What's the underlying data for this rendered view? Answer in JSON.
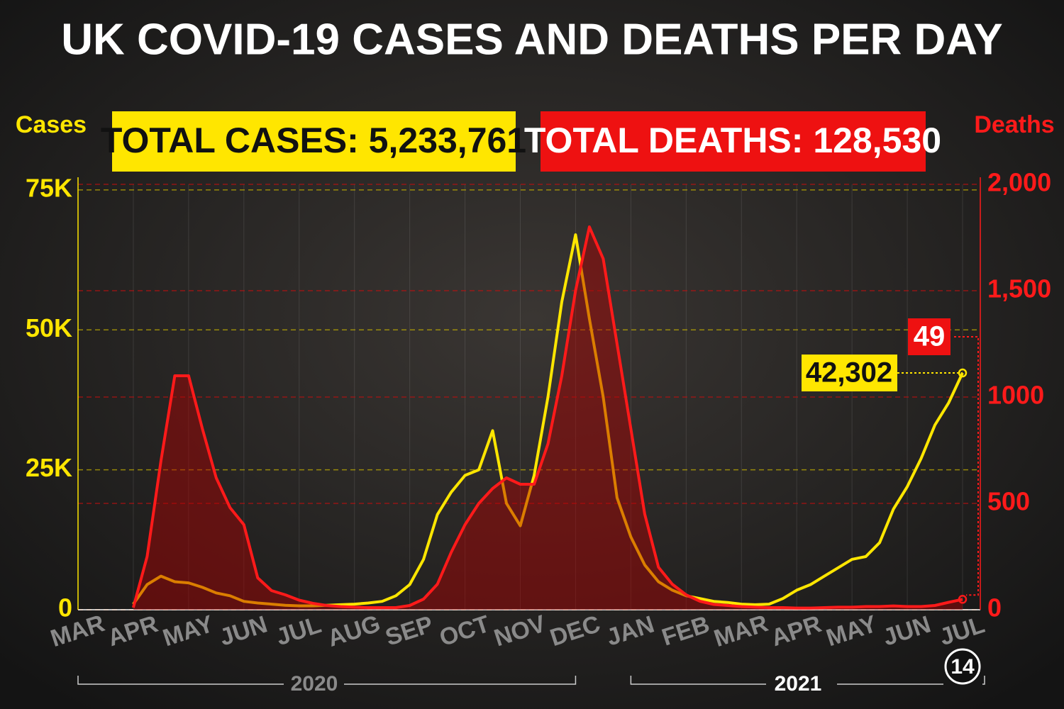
{
  "chart_data": {
    "type": "line",
    "title": "UK COVID-19 CASES AND DEATHS PER DAY",
    "y_label": "Cases",
    "y2_label": "Deaths",
    "annotations": [
      "TOTAL CASES: 5,233,761",
      "TOTAL DEATHS: 128,530"
    ],
    "end_day": "14",
    "years": [
      "2020",
      "2021"
    ],
    "categories": [
      "MAR",
      null,
      null,
      null,
      "APR",
      null,
      null,
      null,
      "MAY",
      null,
      null,
      null,
      "JUN",
      null,
      null,
      null,
      "JUL",
      null,
      null,
      null,
      "AUG",
      null,
      null,
      null,
      "SEP",
      null,
      null,
      null,
      "OCT",
      null,
      null,
      null,
      "NOV",
      null,
      null,
      null,
      "DEC",
      null,
      null,
      null,
      "JAN",
      null,
      null,
      null,
      "FEB",
      null,
      null,
      null,
      "MAR",
      null,
      null,
      null,
      "APR",
      null,
      null,
      null,
      "MAY",
      null,
      null,
      null,
      "JUN",
      null,
      null,
      null,
      "JUL"
    ],
    "series": [
      {
        "name": "Cases",
        "color": "#ffe600",
        "values": [
          null,
          null,
          null,
          null,
          1000,
          4500,
          6000,
          5000,
          4800,
          4000,
          3000,
          2500,
          1500,
          1200,
          1000,
          800,
          700,
          700,
          800,
          900,
          1000,
          1200,
          1500,
          2500,
          4500,
          9000,
          17000,
          21000,
          24000,
          25000,
          32000,
          19000,
          15000,
          24000,
          38000,
          55000,
          67000,
          52000,
          38000,
          20000,
          13000,
          8000,
          5000,
          3500,
          2500,
          2000,
          1500,
          1300,
          1000,
          900,
          1000,
          2000,
          3500,
          4500,
          6000,
          7500,
          9000,
          9500,
          12000,
          18000,
          22000,
          27000,
          33000,
          37000,
          42302
        ],
        "value_labels": [
          null,
          null,
          null,
          null,
          null,
          null,
          null,
          null,
          null,
          null,
          null,
          null,
          null,
          null,
          null,
          null,
          null,
          null,
          null,
          null,
          null,
          null,
          null,
          null,
          null,
          null,
          null,
          null,
          null,
          null,
          null,
          null,
          null,
          null,
          null,
          null,
          null,
          null,
          null,
          null,
          null,
          null,
          null,
          null,
          null,
          null,
          null,
          null,
          null,
          null,
          null,
          null,
          null,
          null,
          null,
          null,
          null,
          null,
          null,
          null,
          null,
          null,
          null,
          null,
          "42,302"
        ]
      },
      {
        "name": "Deaths",
        "color": "#ff1a1a",
        "axis": "y2",
        "values": [
          null,
          null,
          null,
          null,
          10,
          250,
          700,
          1100,
          1100,
          850,
          620,
          480,
          400,
          150,
          90,
          70,
          45,
          30,
          20,
          15,
          12,
          10,
          10,
          10,
          20,
          50,
          120,
          270,
          400,
          500,
          570,
          620,
          590,
          590,
          780,
          1100,
          1500,
          1800,
          1650,
          1250,
          850,
          450,
          200,
          120,
          70,
          40,
          25,
          20,
          15,
          12,
          10,
          10,
          8,
          8,
          10,
          12,
          12,
          15,
          15,
          18,
          15,
          15,
          20,
          35,
          49
        ]
      }
    ],
    "ylim": [
      0,
      76000
    ],
    "yticks": [
      0,
      {
        "value": 25000,
        "label": "25K"
      },
      {
        "value": 50000,
        "label": "50K"
      },
      {
        "value": 75000,
        "label": "75K"
      }
    ],
    "y2lim": [
      0,
      2000
    ],
    "y2ticks": [
      0,
      500,
      1000,
      {
        "value": 1500,
        "label": "1,500"
      },
      {
        "value": 2000,
        "label": "2,000"
      }
    ],
    "grid": true
  }
}
